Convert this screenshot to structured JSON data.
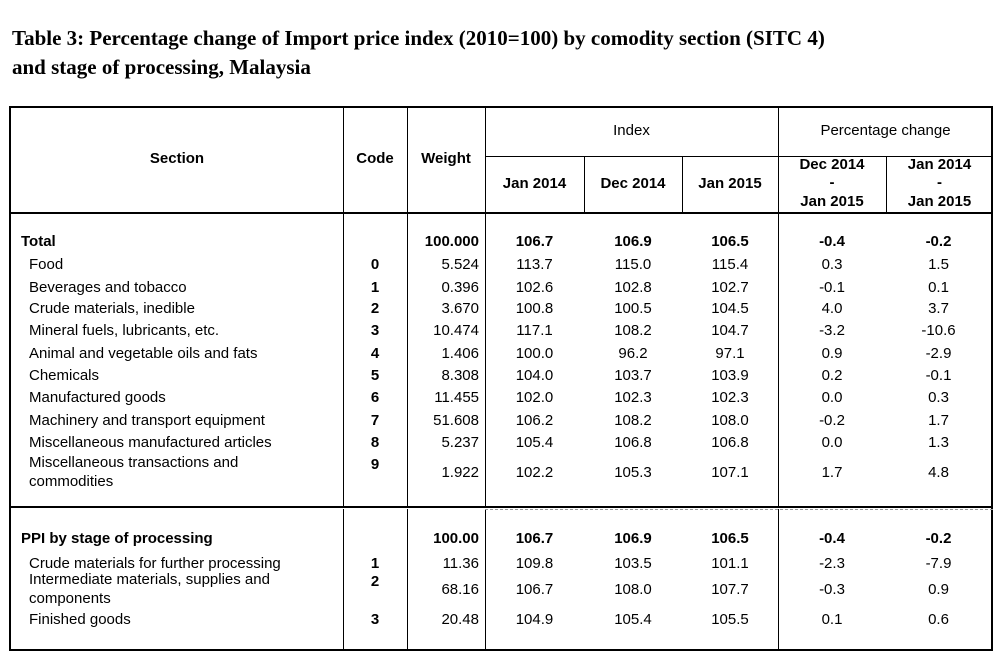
{
  "title_line1": "Table 3: Percentage change of Import price index (2010=100) by comodity section (SITC 4)",
  "title_line2": "and stage of processing, Malaysia",
  "headers": {
    "section": "Section",
    "code": "Code",
    "weight": "Weight",
    "index": "Index",
    "pct_change": "Percentage change",
    "jan2014": "Jan 2014",
    "dec2014": "Dec 2014",
    "jan2015": "Jan 2015",
    "pc1_top": "Dec 2014",
    "pc1_mid": "-",
    "pc1_bot": "Jan  2015",
    "pc2_top": "Jan 2014",
    "pc2_mid": "-",
    "pc2_bot": "Jan 2015"
  },
  "rows1": [
    {
      "label": "Total",
      "code": "",
      "weight": "100.000",
      "i1": "106.7",
      "i2": "106.9",
      "i3": "106.5",
      "p1": "-0.4",
      "p2": "-0.2"
    },
    {
      "label": "Food",
      "code": "0",
      "weight": "5.524",
      "i1": "113.7",
      "i2": "115.0",
      "i3": "115.4",
      "p1": "0.3",
      "p2": "1.5"
    },
    {
      "label": "Beverages and tobacco",
      "code": "1",
      "weight": "0.396",
      "i1": "102.6",
      "i2": "102.8",
      "i3": "102.7",
      "p1": "-0.1",
      "p2": "0.1"
    },
    {
      "label": "Crude materials, inedible",
      "code": "2",
      "weight": "3.670",
      "i1": "100.8",
      "i2": "100.5",
      "i3": "104.5",
      "p1": "4.0",
      "p2": "3.7"
    },
    {
      "label": "Mineral fuels, lubricants, etc.",
      "code": "3",
      "weight": "10.474",
      "i1": "117.1",
      "i2": "108.2",
      "i3": "104.7",
      "p1": "-3.2",
      "p2": "-10.6"
    },
    {
      "label": "Animal and vegetable oils and fats",
      "code": "4",
      "weight": "1.406",
      "i1": "100.0",
      "i2": "96.2",
      "i3": "97.1",
      "p1": "0.9",
      "p2": "-2.9"
    },
    {
      "label": "Chemicals",
      "code": "5",
      "weight": "8.308",
      "i1": "104.0",
      "i2": "103.7",
      "i3": "103.9",
      "p1": "0.2",
      "p2": "-0.1"
    },
    {
      "label": "Manufactured goods",
      "code": "6",
      "weight": "11.455",
      "i1": "102.0",
      "i2": "102.3",
      "i3": "102.3",
      "p1": "0.0",
      "p2": "0.3"
    },
    {
      "label": "Machinery and transport equipment",
      "code": "7",
      "weight": "51.608",
      "i1": "106.2",
      "i2": "108.2",
      "i3": "108.0",
      "p1": "-0.2",
      "p2": "1.7"
    },
    {
      "label": "Miscellaneous manufactured articles",
      "code": "8",
      "weight": "5.237",
      "i1": "105.4",
      "i2": "106.8",
      "i3": "106.8",
      "p1": "0.0",
      "p2": "1.3"
    },
    {
      "label1": "Miscellaneous transactions and",
      "label2": "commodities",
      "code": "9",
      "weight": "1.922",
      "i1": "102.2",
      "i2": "105.3",
      "i3": "107.1",
      "p1": "1.7",
      "p2": "4.8"
    }
  ],
  "rows2": [
    {
      "label": "PPI by stage of processing",
      "code": "",
      "weight": "100.00",
      "i1": "106.7",
      "i2": "106.9",
      "i3": "106.5",
      "p1": "-0.4",
      "p2": "-0.2"
    },
    {
      "label": "Crude materials for further processing",
      "code": "1",
      "weight": "11.36",
      "i1": "109.8",
      "i2": "103.5",
      "i3": "101.1",
      "p1": "-2.3",
      "p2": "-7.9"
    },
    {
      "label1": "Intermediate materials, supplies and",
      "label2": "components",
      "code": "2",
      "weight": "68.16",
      "i1": "106.7",
      "i2": "108.0",
      "i3": "107.7",
      "p1": "-0.3",
      "p2": "0.9"
    },
    {
      "label": "Finished goods",
      "code": "3",
      "weight": "20.48",
      "i1": "104.9",
      "i2": "105.4",
      "i3": "105.5",
      "p1": "0.1",
      "p2": "0.6"
    }
  ]
}
